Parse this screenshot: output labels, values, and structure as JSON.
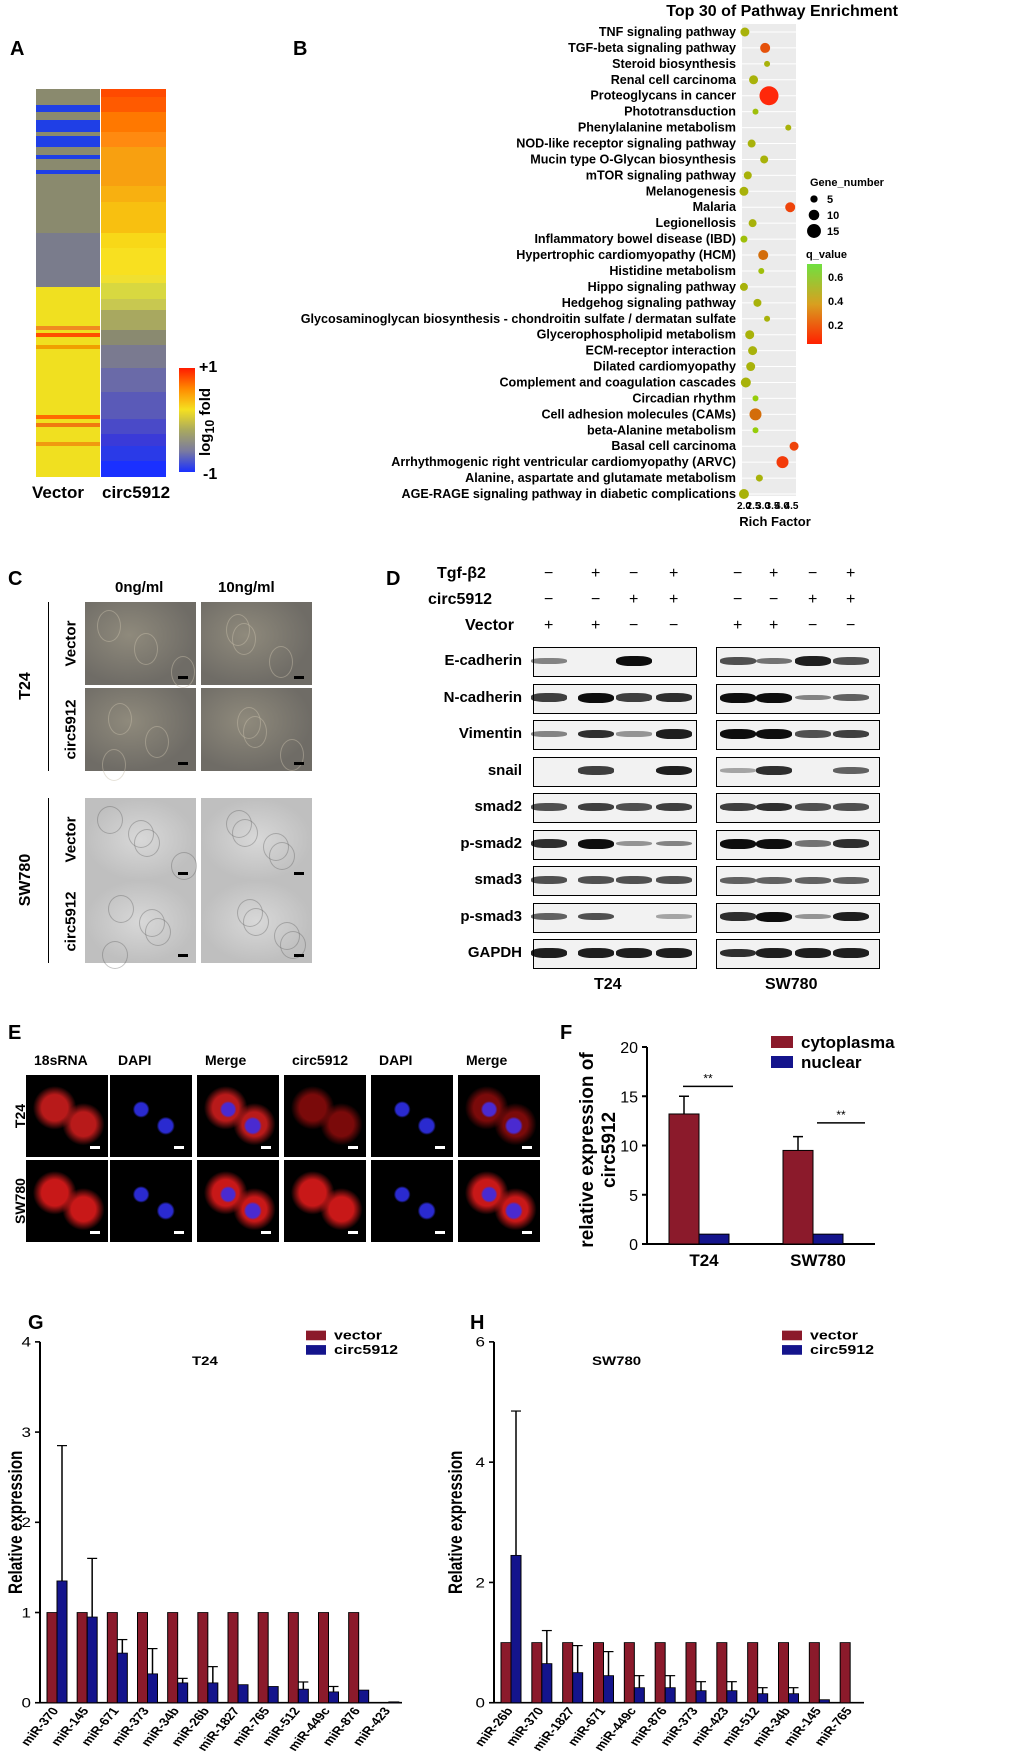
{
  "panels": {
    "A": "A",
    "B": "B",
    "C": "C",
    "D": "D",
    "E": "E",
    "F": "F",
    "G": "G",
    "H": "H"
  },
  "panelA": {
    "columns": [
      "Vector",
      "circ5912"
    ],
    "scale_max": "+1",
    "scale_min": "-1",
    "scale_label": "log10 fold",
    "colors": {
      "low": "#1f3fe6",
      "mid": "#8a8a6e",
      "high": "#f0e020",
      "top": "#ff2a00"
    }
  },
  "chart_data": [
    {
      "type": "scatter",
      "title": "Top 30 of Pathway Enrichment",
      "xlabel": "Rich Factor",
      "x_ticks": [
        "2.0",
        "2.5",
        "3.0",
        "3.5",
        "4.0",
        "4.5"
      ],
      "size_legend_title": "Gene_number",
      "size_legend": [
        "5",
        "10",
        "15"
      ],
      "color_legend_title": "q_value",
      "color_legend": [
        "0.6",
        "0.4",
        "0.2"
      ],
      "pathways": [
        "TNF signaling pathway",
        "TGF-beta signaling pathway",
        "Steroid biosynthesis",
        "Renal cell carcinoma",
        "Proteoglycans in cancer",
        "Phototransduction",
        "Phenylalanine metabolism",
        "NOD-like receptor signaling pathway",
        "Mucin type O-Glycan biosynthesis",
        "mTOR signaling pathway",
        "Melanogenesis",
        "Malaria",
        "Legionellosis",
        "Inflammatory bowel disease (IBD)",
        "Hypertrophic cardiomyopathy (HCM)",
        "Histidine metabolism",
        "Hippo signaling pathway",
        "Hedgehog signaling pathway",
        "Glycosaminoglycan biosynthesis - chondroitin sulfate / dermatan sulfate",
        "Glycerophospholipid metabolism",
        "ECM-receptor interaction",
        "Dilated cardiomyopathy",
        "Complement and coagulation cascades",
        "Circadian rhythm",
        "Cell adhesion molecules (CAMs)",
        "beta-Alanine metabolism",
        "Basal cell carcinoma",
        "Arrhythmogenic right ventricular cardiomyopathy (ARVC)",
        "Alanine, aspartate and glutamate metabolism",
        "AGE-RAGE signaling pathway in diabetic complications"
      ],
      "rich_factor": [
        2.05,
        3.1,
        3.2,
        2.5,
        3.3,
        2.6,
        4.3,
        2.4,
        3.05,
        2.2,
        2.0,
        4.4,
        2.45,
        2.0,
        3.0,
        2.9,
        2.0,
        2.7,
        3.2,
        2.3,
        2.45,
        2.35,
        2.1,
        2.6,
        2.6,
        2.6,
        4.6,
        4.0,
        2.8,
        2.0
      ],
      "gene_number": [
        5,
        6,
        2,
        5,
        15,
        2,
        2,
        4,
        4,
        4,
        5,
        6,
        4,
        3,
        6,
        2,
        4,
        4,
        2,
        5,
        5,
        5,
        6,
        2,
        8,
        2,
        5,
        8,
        3,
        6
      ],
      "q_value": [
        0.55,
        0.2,
        0.55,
        0.55,
        0.05,
        0.6,
        0.55,
        0.55,
        0.55,
        0.55,
        0.55,
        0.15,
        0.55,
        0.6,
        0.3,
        0.6,
        0.55,
        0.55,
        0.55,
        0.55,
        0.55,
        0.55,
        0.55,
        0.65,
        0.3,
        0.65,
        0.15,
        0.12,
        0.55,
        0.55
      ]
    },
    {
      "type": "bar",
      "title": "",
      "ylabel": "relative expression of circ5912",
      "categories": [
        "T24",
        "SW780"
      ],
      "yticks": [
        "0",
        "5",
        "10",
        "15",
        "20"
      ],
      "ylim": [
        0,
        20
      ],
      "significance": [
        "**",
        "**"
      ],
      "series": [
        {
          "name": "cytoplasma",
          "values": [
            13.2,
            9.5
          ],
          "errors": [
            1.8,
            1.4
          ],
          "color": "#8b1a2b"
        },
        {
          "name": "nuclear",
          "values": [
            1.0,
            1.0
          ],
          "errors": [
            0,
            0
          ],
          "color": "#14148c"
        }
      ]
    },
    {
      "type": "bar",
      "title": "T24",
      "ylabel": "Relative expression",
      "categories": [
        "miR-370",
        "miR-145",
        "miR-671",
        "miR-373",
        "miR-34b",
        "miR-26b",
        "miR-1827",
        "miR-765",
        "miR-512",
        "miR-449c",
        "miR-876",
        "miR-423"
      ],
      "yticks": [
        "0",
        "1",
        "2",
        "3",
        "4"
      ],
      "ylim": [
        0,
        4
      ],
      "series": [
        {
          "name": "vector",
          "values": [
            1,
            1,
            1,
            1,
            1,
            1,
            1,
            1,
            1,
            1,
            1,
            0
          ],
          "color": "#8b1a2b"
        },
        {
          "name": "circ5912",
          "values": [
            1.35,
            0.95,
            0.55,
            0.32,
            0.22,
            0.22,
            0.2,
            0.18,
            0.15,
            0.12,
            0.14,
            0.01
          ],
          "errors": [
            1.5,
            0.65,
            0.15,
            0.28,
            0.05,
            0.18,
            0.0,
            0.0,
            0.08,
            0.06,
            0.0,
            0.0
          ],
          "color": "#14148c"
        }
      ]
    },
    {
      "type": "bar",
      "title": "SW780",
      "ylabel": "Relative expression",
      "categories": [
        "miR-26b",
        "miR-370",
        "miR-1827",
        "miR-671",
        "miR-449c",
        "miR-876",
        "miR-373",
        "miR-423",
        "miR-512",
        "miR-34b",
        "miR-145",
        "miR-765"
      ],
      "yticks": [
        "0",
        "2",
        "4",
        "6"
      ],
      "ylim": [
        0,
        6
      ],
      "series": [
        {
          "name": "vector",
          "values": [
            1,
            1,
            1,
            1,
            1,
            1,
            1,
            1,
            1,
            1,
            1,
            1
          ],
          "color": "#8b1a2b"
        },
        {
          "name": "circ5912",
          "values": [
            2.45,
            0.65,
            0.5,
            0.45,
            0.25,
            0.25,
            0.2,
            0.2,
            0.15,
            0.15,
            0.05,
            0.0
          ],
          "errors": [
            2.4,
            0.55,
            0.45,
            0.4,
            0.2,
            0.2,
            0.15,
            0.15,
            0.1,
            0.1,
            0.0,
            0.0
          ],
          "color": "#14148c"
        }
      ]
    }
  ],
  "panelC": {
    "columns": [
      "0ng/ml",
      "10ng/ml"
    ],
    "groups": [
      {
        "cell_line": "T24",
        "rows": [
          "Vector",
          "circ5912"
        ]
      },
      {
        "cell_line": "SW780",
        "rows": [
          "Vector",
          "circ5912"
        ]
      }
    ]
  },
  "panelD": {
    "conditions": [
      {
        "label": "Tgf-β2",
        "signs": [
          "−",
          "+",
          "−",
          "+"
        ]
      },
      {
        "label": "circ5912",
        "signs": [
          "−",
          "−",
          "+",
          "+"
        ]
      },
      {
        "label": "Vector",
        "signs": [
          "+",
          "+",
          "−",
          "−"
        ]
      }
    ],
    "proteins": [
      "E-cadherin",
      "N-cadherin",
      "Vimentin",
      "snail",
      "smad2",
      "p-smad2",
      "smad3",
      "p-smad3",
      "GAPDH"
    ],
    "cell_lines": [
      "T24",
      "SW780"
    ],
    "intensity_T24": [
      [
        0.3,
        0,
        1,
        0
      ],
      [
        0.7,
        1,
        0.7,
        0.8
      ],
      [
        0.3,
        0.8,
        0.2,
        0.9
      ],
      [
        0,
        0.7,
        0,
        0.9
      ],
      [
        0.6,
        0.7,
        0.6,
        0.7
      ],
      [
        0.8,
        1,
        0.2,
        0.3
      ],
      [
        0.6,
        0.6,
        0.6,
        0.6
      ],
      [
        0.5,
        0.6,
        0,
        0.1
      ],
      [
        0.9,
        0.9,
        0.9,
        0.9
      ]
    ],
    "intensity_SW780": [
      [
        0.6,
        0.4,
        0.9,
        0.6
      ],
      [
        1,
        1,
        0.3,
        0.5
      ],
      [
        1,
        1,
        0.6,
        0.7
      ],
      [
        0.1,
        0.8,
        0,
        0.5
      ],
      [
        0.7,
        0.8,
        0.6,
        0.6
      ],
      [
        1,
        1,
        0.4,
        0.8
      ],
      [
        0.5,
        0.5,
        0.5,
        0.5
      ],
      [
        0.8,
        1,
        0.2,
        0.9
      ],
      [
        0.8,
        0.9,
        0.9,
        0.9
      ]
    ]
  },
  "panelE": {
    "columns": [
      "18sRNA",
      "DAPI",
      "Merge",
      "circ5912",
      "DAPI",
      "Merge"
    ],
    "rows": [
      "T24",
      "SW780"
    ]
  }
}
